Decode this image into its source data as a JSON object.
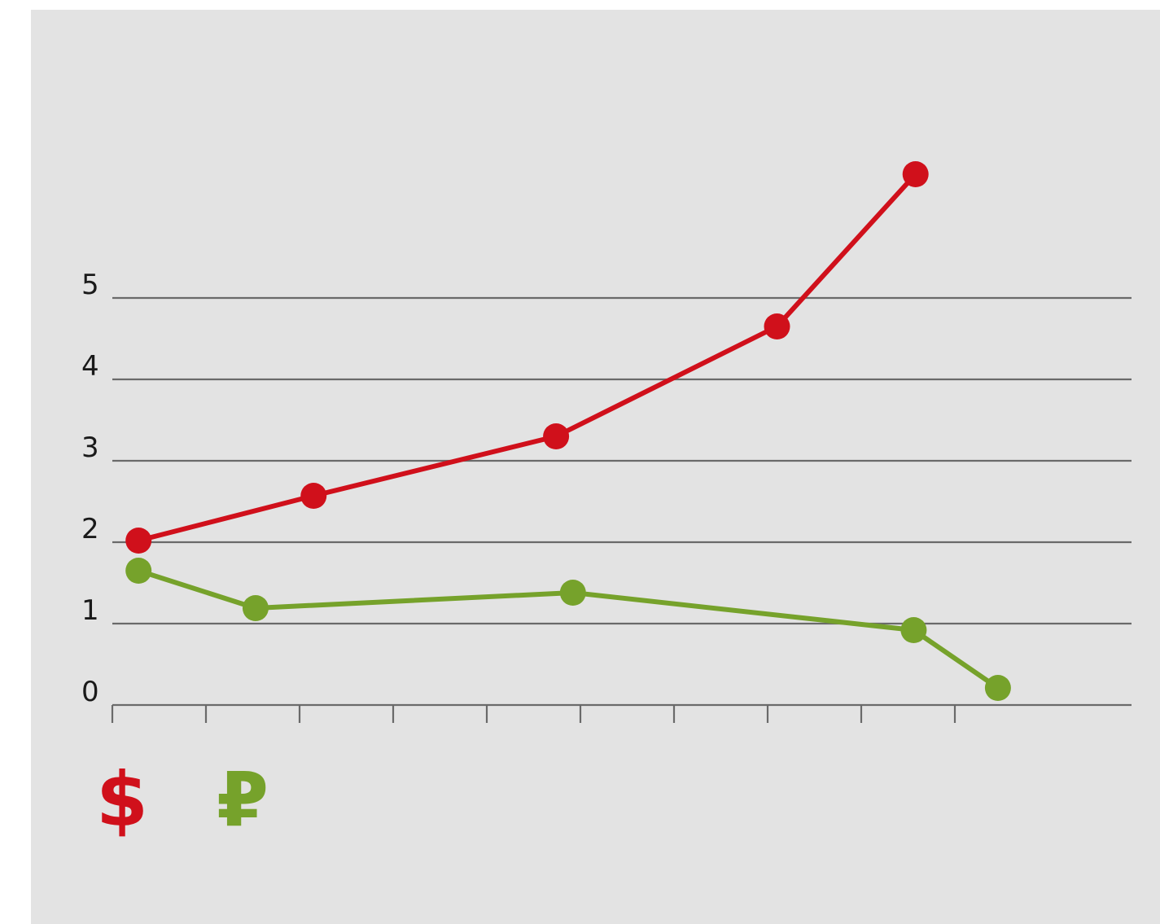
{
  "chart_data": {
    "type": "line",
    "title": "",
    "xlabel": "",
    "ylabel": "",
    "ylim": [
      0,
      6
    ],
    "xlim": [
      0,
      11
    ],
    "grid": true,
    "y_ticks": [
      0,
      1,
      2,
      3,
      4,
      5
    ],
    "y_tick_labels": [
      "0",
      "1",
      "2",
      "3",
      "4",
      "5"
    ],
    "x_tick_count": 10,
    "legend_position": "bottom-left",
    "series": [
      {
        "name": "$",
        "color": "#d0101b",
        "points": [
          {
            "x": 0.28,
            "y": 2.02
          },
          {
            "x": 2.15,
            "y": 2.57
          },
          {
            "x": 4.74,
            "y": 3.3
          },
          {
            "x": 7.1,
            "y": 4.65
          },
          {
            "x": 8.58,
            "y": 6.52
          }
        ]
      },
      {
        "name": "₽",
        "color": "#76a22b",
        "points": [
          {
            "x": 0.28,
            "y": 1.65
          },
          {
            "x": 1.53,
            "y": 1.19
          },
          {
            "x": 4.92,
            "y": 1.38
          },
          {
            "x": 8.56,
            "y": 0.92
          },
          {
            "x": 9.46,
            "y": 0.21
          }
        ]
      }
    ]
  }
}
